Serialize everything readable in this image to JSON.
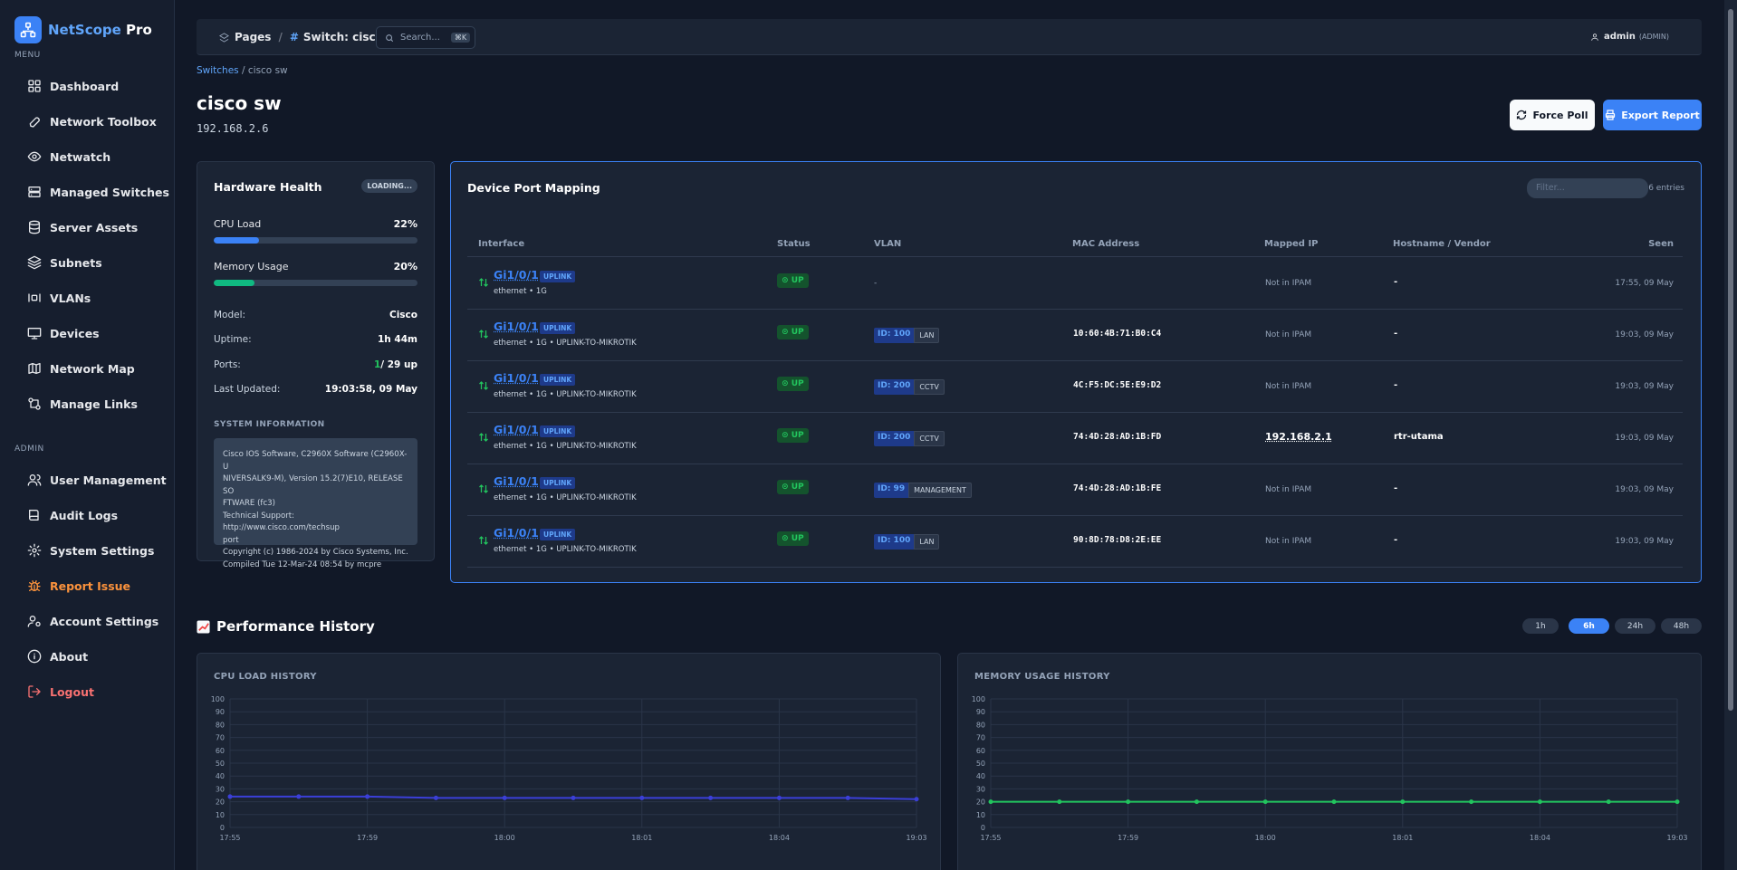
{
  "app": {
    "name_main": "NetScope",
    "name_pro": "Pro",
    "menu_label": "MENU",
    "admin_label": "ADMIN"
  },
  "nav": {
    "main": [
      {
        "label": "Dashboard",
        "icon": "dashboard-icon"
      },
      {
        "label": "Network Toolbox",
        "icon": "wrench-icon"
      },
      {
        "label": "Netwatch",
        "icon": "eye-icon"
      },
      {
        "label": "Managed Switches",
        "icon": "switch-icon"
      },
      {
        "label": "Server Assets",
        "icon": "database-icon"
      },
      {
        "label": "Subnets",
        "icon": "layers-icon"
      },
      {
        "label": "VLANs",
        "icon": "vlan-icon"
      },
      {
        "label": "Devices",
        "icon": "monitor-icon"
      },
      {
        "label": "Network Map",
        "icon": "map-icon"
      },
      {
        "label": "Manage Links",
        "icon": "link-icon"
      }
    ],
    "admin": [
      {
        "label": "User Management",
        "icon": "users-icon"
      },
      {
        "label": "Audit Logs",
        "icon": "book-icon"
      },
      {
        "label": "System Settings",
        "icon": "gear-icon"
      },
      {
        "label": "Report Issue",
        "icon": "bug-icon",
        "color": "#fb923c"
      },
      {
        "label": "Account Settings",
        "icon": "user-cog-icon"
      },
      {
        "label": "About",
        "icon": "info-icon"
      },
      {
        "label": "Logout",
        "icon": "logout-icon",
        "color": "#f87171"
      }
    ]
  },
  "topbar": {
    "crumb_pages": "Pages",
    "crumb_current": "Switch: cisco sw",
    "search_placeholder": "Search...",
    "search_shortcut": "⌘K",
    "user": "admin",
    "role": "(ADMIN)"
  },
  "page": {
    "breadcrumb_link": "Switches",
    "breadcrumb_current": "cisco sw",
    "title": "cisco sw",
    "ip": "192.168.2.6",
    "force_poll_label": "Force Poll",
    "export_label": "Export Report"
  },
  "hardware": {
    "title": "Hardware Health",
    "status_badge": "LOADING...",
    "cpu_label": "CPU Load",
    "cpu_value": "22%",
    "cpu_fraction": 0.22,
    "mem_label": "Memory Usage",
    "mem_value": "20%",
    "mem_fraction": 0.2,
    "model_label": "Model:",
    "model": "Cisco",
    "uptime_label": "Uptime:",
    "uptime": "1h 44m",
    "ports_label": "Ports:",
    "ports_up": "1",
    "ports_rest": "/ 29 up",
    "updated_label": "Last Updated:",
    "updated": "19:03:58, 09 May",
    "sysinfo_label": "SYSTEM INFORMATION",
    "sysinfo": "Cisco IOS Software, C2960X Software (C2960X-U\nNIVERSALK9-M), Version 15.2(7)E10, RELEASE SO\nFTWARE (fc3)\nTechnical Support: http://www.cisco.com/techsup\nport\nCopyright (c) 1986-2024 by Cisco Systems, Inc.\nCompiled Tue 12-Mar-24 08:54 by mcpre"
  },
  "ports": {
    "title": "Device Port Mapping",
    "filter_placeholder": "Filter...",
    "entries": "6 entries",
    "headers": [
      "Interface",
      "Status",
      "VLAN",
      "MAC Address",
      "Mapped IP",
      "Hostname / Vendor",
      "Seen"
    ],
    "uplink_badge": "UPLINK",
    "rows": [
      {
        "iface": "Gi1/0/1",
        "sub": "ethernet  • 1G",
        "status": "UP",
        "vlan_id": "",
        "vlan_name": "",
        "vlan_dash": "-",
        "mac": "",
        "ip": "Not in IPAM",
        "host": "-",
        "seen": "17:55, 09 May"
      },
      {
        "iface": "Gi1/0/1",
        "sub": "ethernet  • 1G  • UPLINK-TO-MIKROTIK",
        "status": "UP",
        "vlan_id": "ID: 100",
        "vlan_name": "LAN",
        "vlan_dash": "",
        "mac": "10:60:4B:71:B0:C4",
        "ip": "Not in IPAM",
        "host": "-",
        "seen": "19:03, 09 May"
      },
      {
        "iface": "Gi1/0/1",
        "sub": "ethernet  • 1G  • UPLINK-TO-MIKROTIK",
        "status": "UP",
        "vlan_id": "ID: 200",
        "vlan_name": "CCTV",
        "vlan_dash": "",
        "mac": "4C:F5:DC:5E:E9:D2",
        "ip": "Not in IPAM",
        "host": "-",
        "seen": "19:03, 09 May"
      },
      {
        "iface": "Gi1/0/1",
        "sub": "ethernet  • 1G  • UPLINK-TO-MIKROTIK",
        "status": "UP",
        "vlan_id": "ID: 200",
        "vlan_name": "CCTV",
        "vlan_dash": "",
        "mac": "74:4D:28:AD:1B:FD",
        "ip": "192.168.2.1",
        "host": "rtr-utama",
        "seen": "19:03, 09 May"
      },
      {
        "iface": "Gi1/0/1",
        "sub": "ethernet  • 1G  • UPLINK-TO-MIKROTIK",
        "status": "UP",
        "vlan_id": "ID: 99",
        "vlan_name": "MANAGEMENT",
        "vlan_dash": "",
        "mac": "74:4D:28:AD:1B:FE",
        "ip": "Not in IPAM",
        "host": "-",
        "seen": "19:03, 09 May"
      },
      {
        "iface": "Gi1/0/1",
        "sub": "ethernet  • 1G  • UPLINK-TO-MIKROTIK",
        "status": "UP",
        "vlan_id": "ID: 100",
        "vlan_name": "LAN",
        "vlan_dash": "",
        "mac": "90:8D:78:D8:2E:EE",
        "ip": "Not in IPAM",
        "host": "-",
        "seen": "19:03, 09 May"
      }
    ]
  },
  "performance": {
    "title": "Performance History",
    "ranges": [
      "1h",
      "6h",
      "24h",
      "48h"
    ],
    "active_range": "6h"
  },
  "chart_data": [
    {
      "type": "line",
      "title": "CPU LOAD HISTORY",
      "ylim": [
        0,
        100
      ],
      "yticks": [
        0,
        10,
        20,
        30,
        40,
        50,
        60,
        70,
        80,
        90,
        100
      ],
      "xticks": [
        "17:55",
        "17:59",
        "18:00",
        "18:01",
        "18:04",
        "19:03"
      ],
      "values": [
        24,
        24,
        24,
        23,
        23,
        23,
        23,
        23,
        23,
        23,
        22
      ],
      "color": "#3b3fd8",
      "grid": true
    },
    {
      "type": "line",
      "title": "MEMORY USAGE HISTORY",
      "ylim": [
        0,
        100
      ],
      "yticks": [
        0,
        10,
        20,
        30,
        40,
        50,
        60,
        70,
        80,
        90,
        100
      ],
      "xticks": [
        "17:55",
        "17:59",
        "18:00",
        "18:01",
        "18:04",
        "19:03"
      ],
      "values": [
        20,
        20,
        20,
        20,
        20,
        20,
        20,
        20,
        20,
        20,
        20
      ],
      "color": "#22c55e",
      "grid": true
    }
  ]
}
